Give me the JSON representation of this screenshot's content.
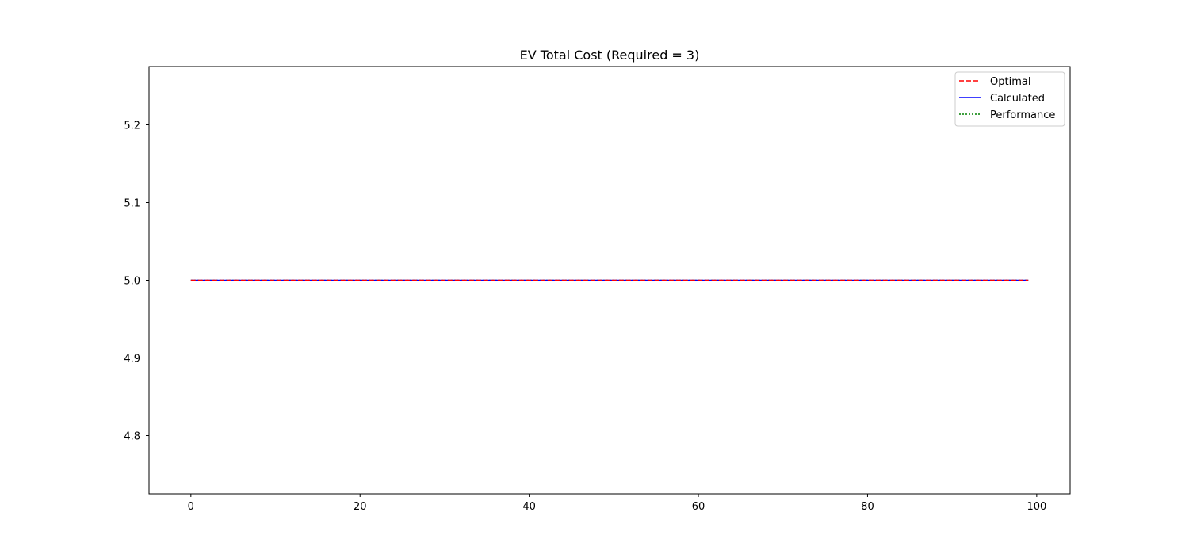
{
  "chart_data": {
    "type": "line",
    "title": "EV Total Cost (Required = 3)",
    "xlabel": "",
    "ylabel": "",
    "xlim": [
      -4.95,
      103.95
    ],
    "ylim": [
      4.725,
      5.275
    ],
    "x_ticks": [
      0,
      20,
      40,
      60,
      80,
      100
    ],
    "x_tick_labels": [
      "0",
      "20",
      "40",
      "60",
      "80",
      "100"
    ],
    "y_ticks": [
      4.8,
      4.9,
      5.0,
      5.1,
      5.2
    ],
    "y_tick_labels": [
      "4.8",
      "4.9",
      "5.0",
      "5.1",
      "5.2"
    ],
    "grid": false,
    "legend_position": "top-right",
    "x_range": [
      0,
      99
    ],
    "series": [
      {
        "name": "Performance",
        "color": "#008000",
        "style": "dotted",
        "value": 5.0
      },
      {
        "name": "Calculated",
        "color": "#0000ff",
        "style": "solid",
        "value": 5.0
      },
      {
        "name": "Optimal",
        "color": "#ff0000",
        "style": "dashed",
        "value": 5.0
      }
    ],
    "legend_order": [
      "Optimal",
      "Calculated",
      "Performance"
    ]
  }
}
